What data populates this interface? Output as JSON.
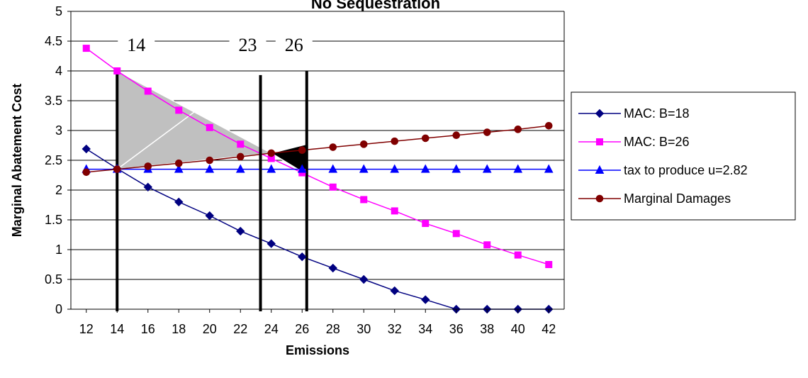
{
  "chart_data": {
    "type": "line",
    "title": "No Sequestration",
    "xlabel": "Emissions",
    "ylabel": "Marginal Abatement Cost",
    "x": [
      12,
      14,
      16,
      18,
      20,
      22,
      24,
      26,
      28,
      30,
      32,
      34,
      36,
      38,
      40,
      42
    ],
    "xlim": [
      11,
      43
    ],
    "ylim": [
      0,
      5
    ],
    "y_ticks": [
      "0",
      "0.5",
      "1",
      "1.5",
      "2",
      "2.5",
      "3",
      "3.5",
      "4",
      "4.5",
      "5"
    ],
    "x_ticks": [
      "12",
      "14",
      "16",
      "18",
      "20",
      "22",
      "24",
      "26",
      "28",
      "30",
      "32",
      "34",
      "36",
      "38",
      "40",
      "42"
    ],
    "grid": "horizontal",
    "legend_position": "right",
    "series": [
      {
        "name": "MAC: B=18",
        "color": "#000080",
        "marker": "diamond",
        "values": [
          2.69,
          2.36,
          2.05,
          1.8,
          1.57,
          1.31,
          1.1,
          0.88,
          0.69,
          0.5,
          0.31,
          0.16,
          0.0,
          0.0,
          0.0,
          0.0
        ]
      },
      {
        "name": "MAC: B=26",
        "color": "#ff00ff",
        "marker": "square",
        "values": [
          4.38,
          4.0,
          3.66,
          3.34,
          3.05,
          2.77,
          2.53,
          2.29,
          2.05,
          1.84,
          1.65,
          1.44,
          1.27,
          1.08,
          0.91,
          0.75
        ]
      },
      {
        "name": "tax to produce u=2.82",
        "color": "#0000ff",
        "marker": "triangle",
        "values": [
          2.35,
          2.35,
          2.35,
          2.35,
          2.35,
          2.35,
          2.35,
          2.35,
          2.35,
          2.35,
          2.35,
          2.35,
          2.35,
          2.35,
          2.35,
          2.35
        ]
      },
      {
        "name": "Marginal Damages",
        "color": "#800000",
        "marker": "circle",
        "values": [
          2.3,
          2.35,
          2.4,
          2.45,
          2.5,
          2.56,
          2.62,
          2.67,
          2.72,
          2.77,
          2.82,
          2.87,
          2.92,
          2.97,
          3.02,
          3.08
        ]
      }
    ],
    "vertical_lines": [
      {
        "x": 14,
        "label": "14",
        "y_top": 4.0
      },
      {
        "x": 23.3,
        "label": "23",
        "y_top": 3.93
      },
      {
        "x": 26.3,
        "label": "26",
        "y_top": 4.0
      }
    ],
    "shaded_regions": [
      {
        "color": "#c0c0c0",
        "points": [
          [
            14,
            4.0
          ],
          [
            14,
            2.35
          ],
          [
            24,
            2.62
          ]
        ]
      },
      {
        "color": "#000000",
        "points": [
          [
            24,
            2.62
          ],
          [
            26.3,
            2.77
          ],
          [
            26.3,
            2.26
          ]
        ]
      }
    ]
  }
}
